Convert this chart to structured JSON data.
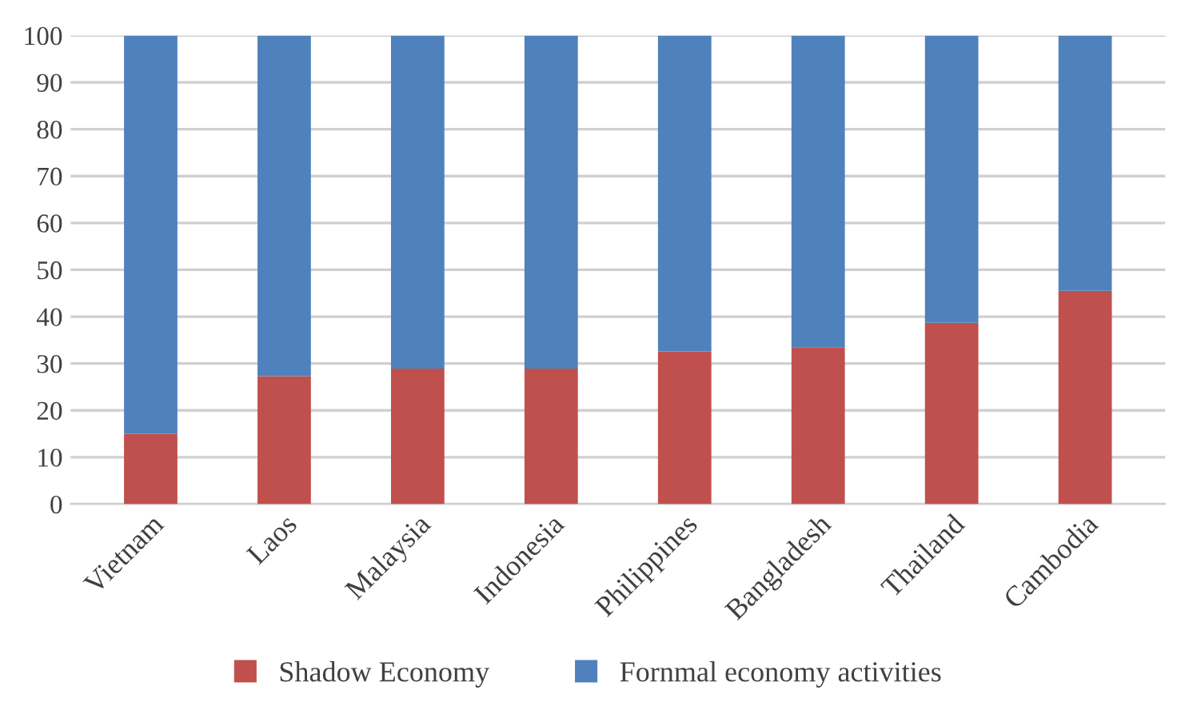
{
  "chart_data": {
    "type": "bar",
    "stacked": true,
    "categories": [
      "Vietnam",
      "Laos",
      "Malaysia",
      "Indonesia",
      "Philippines",
      "Bangladesh",
      "Thailand",
      "Cambodia"
    ],
    "series": [
      {
        "name": "Shadow Economy",
        "color": "#c0504d",
        "values": [
          15,
          27.3,
          28.9,
          28.9,
          32.6,
          33.5,
          38.7,
          45.5
        ]
      },
      {
        "name": "Fornmal economy activities",
        "color": "#4f81bd",
        "values": [
          85,
          72.7,
          71.1,
          71.1,
          67.4,
          66.5,
          61.3,
          54.5
        ]
      }
    ],
    "ylim": [
      0,
      100
    ],
    "yticks": [
      0,
      10,
      20,
      30,
      40,
      50,
      60,
      70,
      80,
      90,
      100
    ],
    "grid": "y",
    "legend": "bottom"
  }
}
